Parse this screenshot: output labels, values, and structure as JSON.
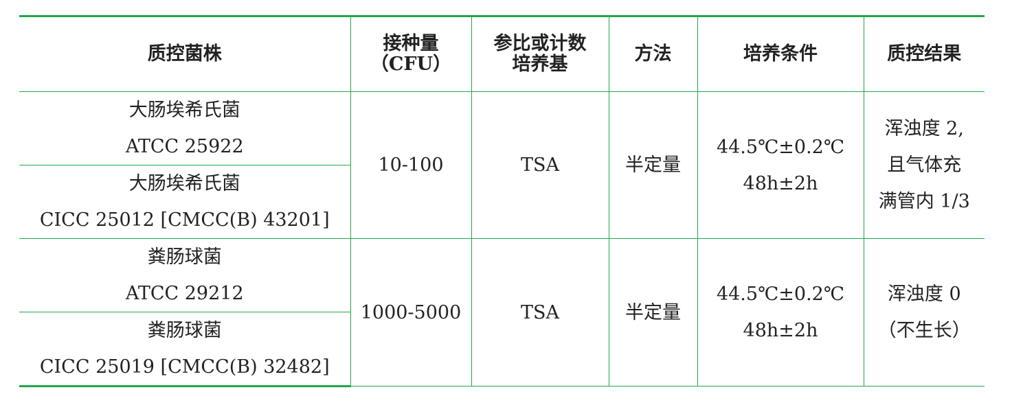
{
  "table": {
    "header": [
      [
        "质控菌株"
      ],
      [
        "接种量",
        "（CFU）"
      ],
      [
        "参比或计数",
        "培养基"
      ],
      [
        "方法"
      ],
      [
        "培养条件"
      ],
      [
        "质控结果"
      ]
    ],
    "groups": [
      {
        "strains": [
          [
            "大肠埃希氏菌",
            "ATCC 25922"
          ],
          [
            "大肠埃希氏菌",
            "CICC 25012 [CMCC(B) 43201]"
          ]
        ],
        "inoculum": [
          "10-100"
        ],
        "medium": [
          "TSA"
        ],
        "method": [
          "半定量"
        ],
        "conditions": [
          "44.5℃±0.2℃",
          "48h±2h"
        ],
        "result": [
          "浑浊度 2,",
          "且气体充",
          "满管内 1/3"
        ]
      },
      {
        "strains": [
          [
            "粪肠球菌",
            "ATCC 29212"
          ],
          [
            "粪肠球菌",
            "CICC 25019 [CMCC(B) 32482]"
          ]
        ],
        "inoculum": [
          "1000-5000"
        ],
        "medium": [
          "TSA"
        ],
        "method": [
          "半定量"
        ],
        "conditions": [
          "44.5℃±0.2℃",
          "48h±2h"
        ],
        "result": [
          "浑浊度 0",
          "（不生长）"
        ]
      }
    ]
  }
}
